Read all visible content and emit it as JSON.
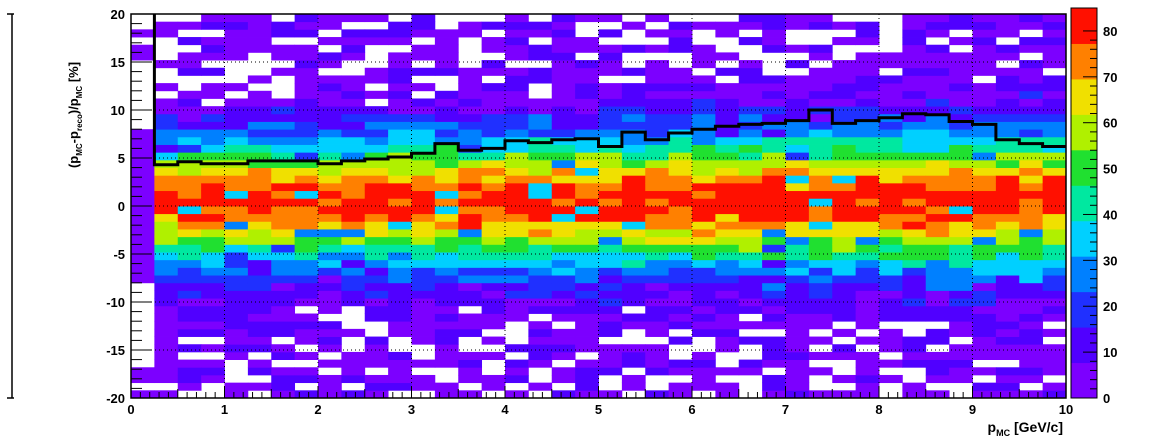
{
  "chart_data": {
    "type": "heatmap",
    "title": "",
    "xlabel": {
      "main": "p",
      "sub": "MC",
      "unit": " [GeV/c]"
    },
    "ylabel": {
      "parts": [
        {
          "t": "(p",
          "s": false
        },
        {
          "t": "MC",
          "s": true
        },
        {
          "t": "-p",
          "s": false
        },
        {
          "t": "reco",
          "s": true
        },
        {
          "t": ")/p",
          "s": false
        },
        {
          "t": "MC",
          "s": true
        },
        {
          "t": " [%]",
          "s": false
        }
      ]
    },
    "xlim": [
      0,
      10
    ],
    "ylim": [
      -20,
      20
    ],
    "zlim": [
      0,
      85
    ],
    "x_ticks": [
      0,
      1,
      2,
      3,
      4,
      5,
      6,
      7,
      8,
      9,
      10
    ],
    "y_ticks": [
      -20,
      -15,
      -10,
      -5,
      0,
      5,
      10,
      15,
      20
    ],
    "z_ticks": [
      0,
      10,
      20,
      30,
      40,
      50,
      60,
      70,
      80
    ],
    "grid": true,
    "legend": "color-scale-right",
    "colormap": [
      "#7c00ff",
      "#5000ff",
      "#2030ff",
      "#0080ff",
      "#00d0ff",
      "#00e8a0",
      "#20e030",
      "#b0f000",
      "#f0e000",
      "#ff8000",
      "#ff1000"
    ],
    "x_bins": 40,
    "y_bins": 50,
    "profile": {
      "x": [
        0.25,
        0.5,
        0.75,
        1.0,
        1.25,
        1.5,
        1.75,
        2.0,
        2.25,
        2.5,
        2.75,
        3.0,
        3.25,
        3.5,
        3.75,
        4.0,
        4.25,
        4.5,
        4.75,
        5.0,
        5.25,
        5.5,
        5.75,
        6.0,
        6.25,
        6.5,
        6.75,
        7.0,
        7.25,
        7.5,
        7.75,
        8.0,
        8.25,
        8.5,
        8.75,
        9.0,
        9.25,
        9.5,
        9.75,
        10.0
      ],
      "y": [
        4.3,
        4.6,
        4.4,
        4.4,
        4.7,
        4.7,
        4.7,
        4.4,
        4.7,
        4.9,
        5.1,
        5.5,
        6.5,
        5.8,
        6.0,
        6.8,
        6.6,
        6.9,
        7.0,
        6.2,
        7.7,
        6.9,
        7.6,
        8.0,
        8.3,
        8.5,
        8.6,
        8.9,
        10.0,
        8.6,
        8.9,
        9.2,
        9.6,
        9.5,
        8.8,
        8.5,
        6.9,
        6.5,
        6.2,
        6.2
      ]
    }
  }
}
